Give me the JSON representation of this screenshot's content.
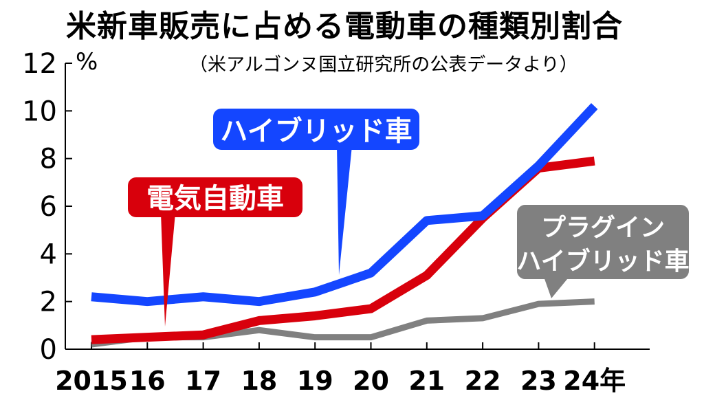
{
  "title": "米新車販売に占める電動車の種類別割合",
  "source": "（米アルゴンヌ国立研究所の公表データより）",
  "unit": "%",
  "colors": {
    "hybrid": "#1446ff",
    "electric": "#d8000c",
    "plugin": "#808080",
    "axis": "#000000"
  },
  "chart_data": {
    "type": "line",
    "title": "米新車販売に占める電動車の種類別割合",
    "ylabel": "%",
    "ylim": [
      0,
      12
    ],
    "yticks": [
      "0",
      "2",
      "4",
      "6",
      "8",
      "10",
      "12"
    ],
    "x": [
      "2015",
      "16",
      "17",
      "18",
      "19",
      "20",
      "21",
      "22",
      "23",
      "24年"
    ],
    "series": [
      {
        "name": "ハイブリッド車",
        "color": "#1446ff",
        "values": [
          2.2,
          2.0,
          2.2,
          2.0,
          2.4,
          3.2,
          5.4,
          5.6,
          7.7,
          10.2
        ]
      },
      {
        "name": "電気自動車",
        "color": "#d8000c",
        "values": [
          0.4,
          0.5,
          0.6,
          1.2,
          1.4,
          1.7,
          3.1,
          5.5,
          7.6,
          7.9
        ]
      },
      {
        "name": "プラグインハイブリッド車",
        "color": "#808080",
        "values": [
          0.2,
          0.5,
          0.5,
          0.8,
          0.5,
          0.5,
          1.2,
          1.3,
          1.9,
          2.0
        ]
      }
    ],
    "labels": {
      "hybrid": "ハイブリッド車",
      "electric": "電気自動車",
      "plugin_line1": "プラグイン",
      "plugin_line2": "ハイブリッド車"
    },
    "grid": false,
    "legend": "callouts"
  }
}
